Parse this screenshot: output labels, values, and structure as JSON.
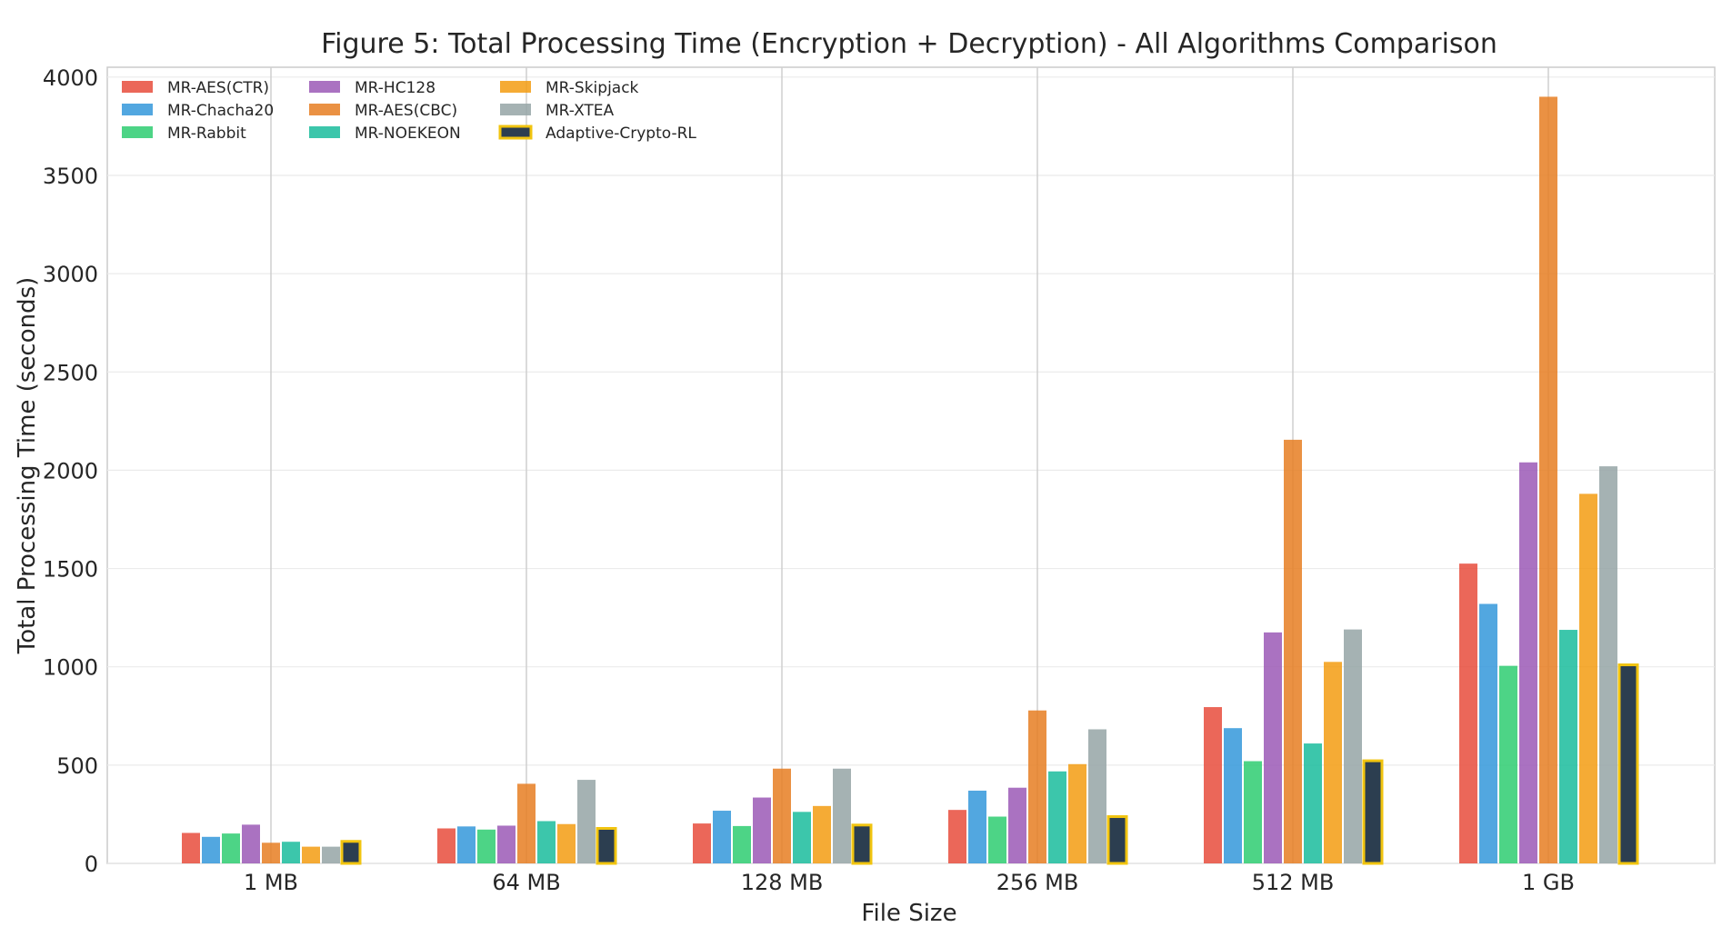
{
  "chart_data": {
    "type": "bar",
    "title": "Figure 5: Total Processing Time (Encryption + Decryption) - All Algorithms Comparison",
    "xlabel": "File Size",
    "ylabel": "Total Processing Time (seconds)",
    "categories": [
      "1 MB",
      "64 MB",
      "128 MB",
      "256 MB",
      "512 MB",
      "1 GB"
    ],
    "ylim": [
      0,
      4050
    ],
    "yticks": [
      0,
      500,
      1000,
      1500,
      2000,
      2500,
      3000,
      3500,
      4000
    ],
    "grid": true,
    "legend_position": "top-left",
    "series": [
      {
        "name": "MR-AES(CTR)",
        "color": "#e74c3c",
        "values": [
          155,
          178,
          203,
          272,
          795,
          1525
        ]
      },
      {
        "name": "MR-Chacha20",
        "color": "#3498db",
        "values": [
          135,
          188,
          268,
          370,
          688,
          1320
        ]
      },
      {
        "name": "MR-Rabbit",
        "color": "#2ecc71",
        "values": [
          152,
          172,
          190,
          238,
          520,
          1005
        ]
      },
      {
        "name": "MR-HC128",
        "color": "#9b59b6",
        "values": [
          197,
          192,
          335,
          385,
          1175,
          2040
        ]
      },
      {
        "name": "MR-AES(CBC)",
        "color": "#e67e22",
        "values": [
          105,
          405,
          482,
          778,
          2155,
          3900
        ]
      },
      {
        "name": "MR-NOEKEON",
        "color": "#1abc9c",
        "values": [
          110,
          215,
          262,
          468,
          610,
          1188
        ]
      },
      {
        "name": "MR-Skipjack",
        "color": "#f39c12",
        "values": [
          85,
          200,
          292,
          505,
          1025,
          1880
        ]
      },
      {
        "name": "MR-XTEA",
        "color": "#95a5a6",
        "values": [
          85,
          425,
          482,
          682,
          1190,
          2020
        ]
      },
      {
        "name": "Adaptive-Crypto-RL",
        "color": "#2c3e50",
        "edge_color": "#f1c40f",
        "values": [
          112,
          178,
          195,
          238,
          522,
          1010
        ]
      }
    ]
  }
}
